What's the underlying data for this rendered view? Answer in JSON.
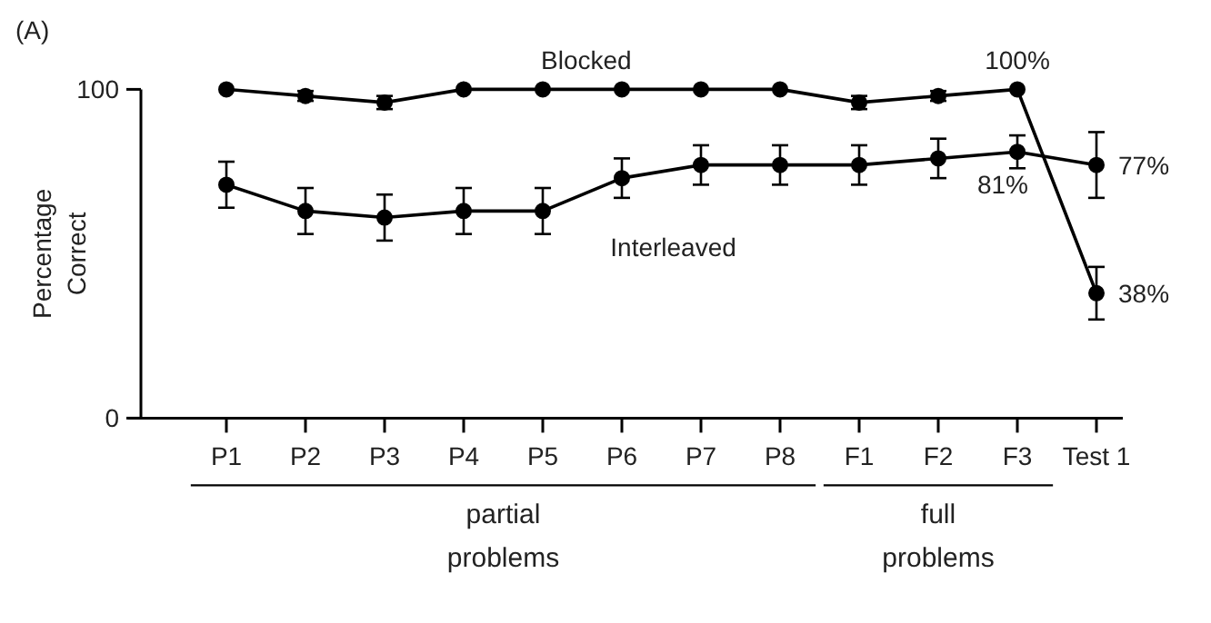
{
  "chart_data": {
    "type": "line",
    "ylabel": "Percentage\nCorrect",
    "categories": [
      "P1",
      "P2",
      "P3",
      "P4",
      "P5",
      "P6",
      "P7",
      "P8",
      "F1",
      "F2",
      "F3",
      "Test 1"
    ],
    "series": [
      {
        "name": "Blocked",
        "color": "#000000",
        "values": [
          100,
          98,
          96,
          100,
          100,
          100,
          100,
          100,
          96,
          98,
          100,
          38
        ],
        "errors": [
          null,
          1.5,
          2,
          null,
          null,
          null,
          null,
          null,
          2,
          1.5,
          null,
          8
        ],
        "value_labels": [
          null,
          null,
          null,
          null,
          null,
          null,
          null,
          null,
          null,
          null,
          "100%",
          "38%"
        ]
      },
      {
        "name": "Interleaved",
        "color": "#000000",
        "values": [
          71,
          63,
          61,
          63,
          63,
          73,
          77,
          77,
          77,
          79,
          81,
          77
        ],
        "errors": [
          7,
          7,
          7,
          7,
          7,
          6,
          6,
          6,
          6,
          6,
          5,
          10
        ],
        "value_labels": [
          null,
          null,
          null,
          null,
          null,
          null,
          null,
          null,
          null,
          null,
          "81%",
          "77%"
        ]
      }
    ],
    "ylim": [
      0,
      100
    ],
    "yticks": [
      0,
      100
    ],
    "grid": false,
    "marker": "circle",
    "line_style": "solid",
    "annotations": [
      "(A)",
      "partial\nproblems",
      "full\nproblems"
    ]
  }
}
